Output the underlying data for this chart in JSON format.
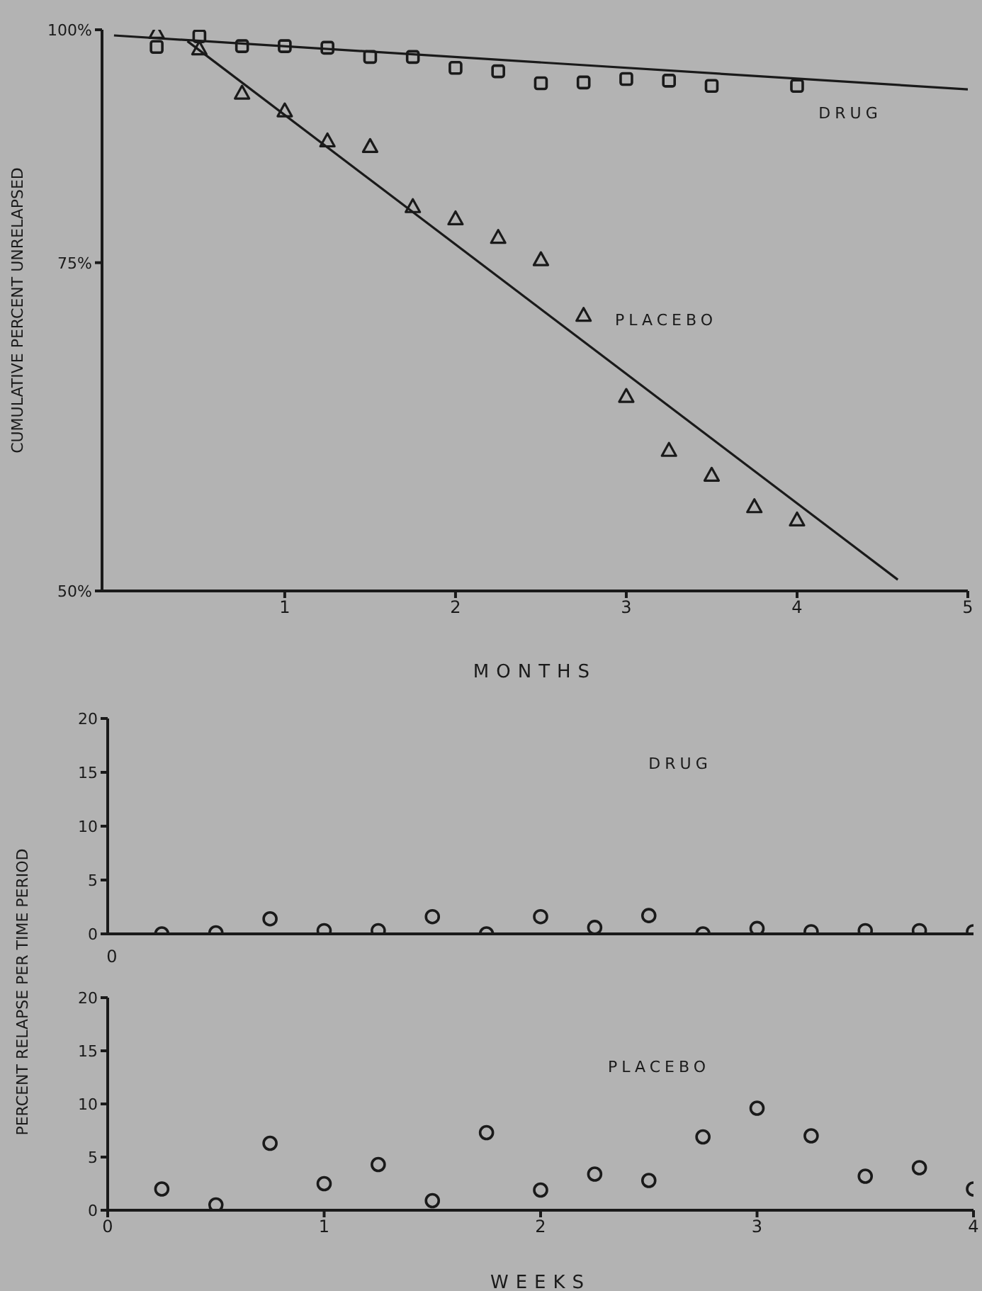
{
  "chart_data": [
    {
      "type": "scatter",
      "ylabel": "CUMULATIVE PERCENT UNRELAPSED",
      "xlabel": "MONTHS",
      "log": "y",
      "xlim": [
        -0.07,
        5
      ],
      "xticks": [
        1,
        2,
        3,
        4,
        5
      ],
      "ylim": [
        50,
        100
      ],
      "yticks": [
        {
          "value": 50,
          "label": "50%"
        },
        {
          "value": 75,
          "label": "75%"
        },
        {
          "value": 100,
          "label": "100%"
        }
      ],
      "grid": false,
      "legend": false,
      "series": [
        {
          "name": "DRUG",
          "color": "#1a1a1a",
          "marker": "square",
          "x": [
            0.25,
            0.5,
            0.75,
            1,
            1.25,
            1.5,
            1.75,
            2,
            2.25,
            2.5,
            2.75,
            3,
            3.25,
            3.5,
            4
          ],
          "values": [
            97.9,
            99.2,
            98.0,
            98.0,
            97.8,
            96.7,
            96.7,
            95.4,
            95.0,
            93.6,
            93.7,
            94.1,
            93.9,
            93.3,
            93.3
          ]
        },
        {
          "name": "PLACEBO",
          "color": "#1a1a1a",
          "marker": "triangle",
          "x": [
            0.25,
            0.5,
            0.75,
            1,
            1.25,
            1.5,
            1.75,
            2,
            2.25,
            2.5,
            2.75,
            3,
            3.25,
            3.5,
            3.75,
            4
          ],
          "values": [
            99.7,
            97.7,
            92.5,
            90.5,
            87.2,
            86.6,
            80.4,
            79.2,
            77.4,
            75.3,
            70.3,
            63.6,
            59.5,
            57.7,
            55.5,
            54.6
          ]
        },
        {
          "type": "line",
          "color": "#1a1a1a",
          "marker": "none",
          "line_style": "solid",
          "x": [
            0,
            5
          ],
          "values": [
            99.3,
            92.9
          ]
        },
        {
          "type": "line",
          "color": "#1a1a1a",
          "marker": "none",
          "line_style": "solid",
          "x": [
            0.43,
            4.59
          ],
          "values": [
            98.6,
            50.7
          ]
        }
      ]
    },
    {
      "type": "scatter",
      "ylabel": "PERCENT RELAPSE PER TIME PERIOD",
      "xlim": [
        0,
        4
      ],
      "xticks": [
        0,
        1,
        2,
        3,
        4
      ],
      "tick_labels": "y",
      "annotations": [
        "0"
      ],
      "ylim": [
        0,
        20
      ],
      "yticks": [
        0,
        5,
        10,
        15,
        20
      ],
      "grid": false,
      "legend": false,
      "marker": "circle",
      "series": [
        {
          "name": "DRUG",
          "color": "#1a1a1a",
          "x": [
            0.25,
            0.5,
            0.75,
            1,
            1.25,
            1.5,
            1.75,
            2,
            2.25,
            2.5,
            2.75,
            3,
            3.25,
            3.5,
            3.75,
            4
          ],
          "values": [
            0,
            0.1,
            1.4,
            0.3,
            0.3,
            1.6,
            0,
            1.6,
            0.6,
            1.7,
            0,
            0.5,
            0.2,
            0.3,
            0.3,
            0.2
          ]
        }
      ]
    },
    {
      "type": "scatter",
      "xlabel": "WEEKS",
      "xlim": [
        0,
        4
      ],
      "xticks": [
        0,
        1,
        2,
        3,
        4
      ],
      "ylim": [
        0,
        20
      ],
      "yticks": [
        0,
        5,
        10,
        15,
        20
      ],
      "grid": false,
      "legend": false,
      "marker": "circle",
      "series": [
        {
          "name": "PLACEBO",
          "color": "#1a1a1a",
          "x": [
            0.25,
            0.5,
            0.75,
            1,
            1.25,
            1.5,
            1.75,
            2,
            2.25,
            2.5,
            2.75,
            3,
            3.25,
            3.5,
            3.75,
            4
          ],
          "values": [
            2.0,
            0.5,
            6.3,
            2.5,
            4.3,
            0.9,
            7.3,
            1.9,
            3.4,
            2.8,
            6.9,
            9.6,
            7.0,
            3.2,
            4.0,
            2.0
          ]
        }
      ]
    }
  ]
}
